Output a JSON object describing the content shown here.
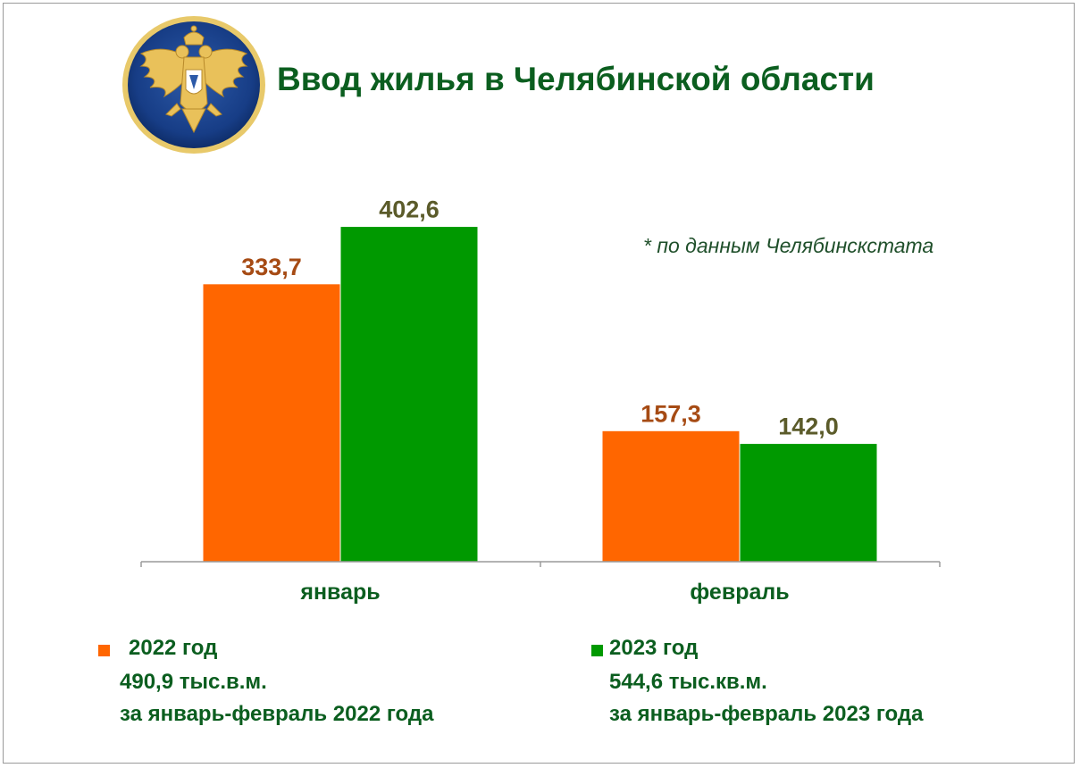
{
  "title": "Ввод жилья в Челябинской области",
  "note": "* по данным Челябинскстата",
  "colors": {
    "series_2022": "#ff6600",
    "series_2023": "#009900",
    "label_2022": "#a64b14",
    "label_2023": "#5b5b2a",
    "title": "#0b5e1f"
  },
  "chart_data": {
    "type": "bar",
    "categories": [
      "январь",
      "февраль"
    ],
    "series": [
      {
        "name": "2022 год",
        "values": [
          333.7,
          157.3
        ],
        "labels": [
          "333,7",
          "157,3"
        ]
      },
      {
        "name": "2023 год",
        "values": [
          402.6,
          142.0
        ],
        "labels": [
          "402,6",
          "142,0"
        ]
      }
    ],
    "ylim": [
      0,
      500
    ],
    "grid": false,
    "legend": "bottom"
  },
  "legend": [
    {
      "name": "2022 год",
      "total": "490,9 тыс.в.м.",
      "period": "за январь-февраль 2022 года"
    },
    {
      "name": "2023 год",
      "total": "544,6 тыс.кв.м.",
      "period": "за январь-февраль 2023 года"
    }
  ]
}
